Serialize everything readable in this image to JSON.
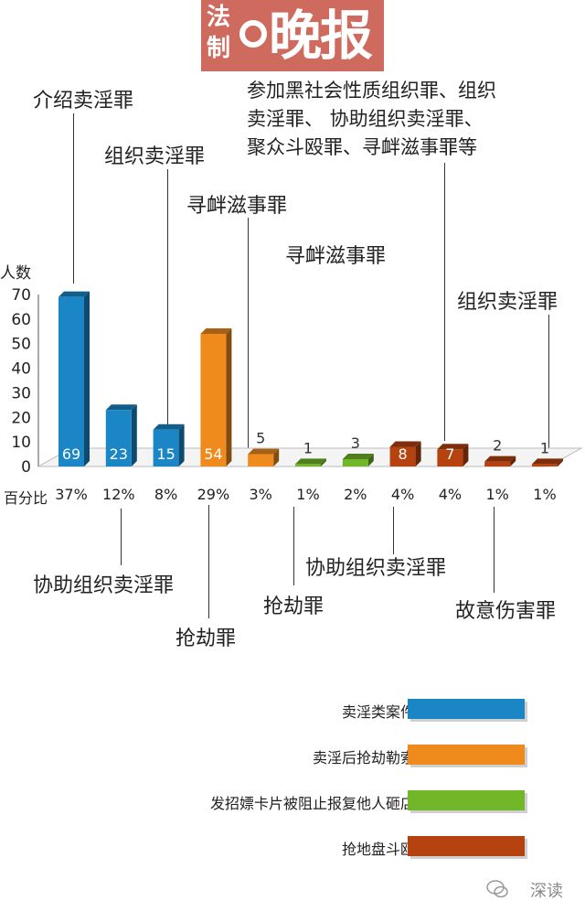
{
  "masthead": {
    "logo_small_top": "法",
    "logo_small_bottom": "制",
    "logo_big": "晚报"
  },
  "chart_data": {
    "type": "bar",
    "ylabel": "人数",
    "ylim": [
      0,
      70
    ],
    "yticks": [
      "0",
      "10",
      "20",
      "30",
      "40",
      "50",
      "60",
      "70"
    ],
    "pct_title": "百分比",
    "bars": [
      {
        "value": 69,
        "pct": "37%",
        "group": "卖淫类案件",
        "color": "#1a86c6",
        "annotation": "介绍卖淫罪"
      },
      {
        "value": 23,
        "pct": "12%",
        "group": "卖淫类案件",
        "color": "#1a86c6",
        "annotation": "协助组织卖淫罪"
      },
      {
        "value": 15,
        "pct": "8%",
        "group": "卖淫类案件",
        "color": "#1a86c6",
        "annotation": "组织卖淫罪"
      },
      {
        "value": 54,
        "pct": "29%",
        "group": "卖淫后抢劫勒索",
        "color": "#ef8a1c",
        "annotation": "抢劫罪"
      },
      {
        "value": 5,
        "pct": "3%",
        "group": "卖淫后抢劫勒索",
        "color": "#ef8a1c",
        "annotation": "寻衅滋事罪"
      },
      {
        "value": 1,
        "pct": "1%",
        "group": "发招嫖卡片被阻止报复他人砸店",
        "color": "#72b62a",
        "annotation": "抢劫罪"
      },
      {
        "value": 3,
        "pct": "2%",
        "group": "发招嫖卡片被阻止报复他人砸店",
        "color": "#72b62a",
        "annotation": "寻衅滋事罪"
      },
      {
        "value": 8,
        "pct": "4%",
        "group": "抢地盘斗殴",
        "color": "#b5420f",
        "annotation": "协助组织卖淫罪"
      },
      {
        "value": 7,
        "pct": "4%",
        "group": "抢地盘斗殴",
        "color": "#b5420f",
        "annotation": "参加黑社会性质组织罪、组织卖淫罪、 协助组织卖淫罪、聚众斗殴罪、寻衅滋事罪等"
      },
      {
        "value": 2,
        "pct": "1%",
        "group": "抢地盘斗殴",
        "color": "#b5420f",
        "annotation": "故意伤害罪"
      },
      {
        "value": 1,
        "pct": "1%",
        "group": "抢地盘斗殴",
        "color": "#b5420f",
        "annotation": "组织卖淫罪"
      }
    ],
    "legend": [
      {
        "label": "卖淫类案件",
        "color": "#1a86c6"
      },
      {
        "label": "卖淫后抢劫勒索",
        "color": "#ef8a1c"
      },
      {
        "label": "发招嫖卡片被阻止报复他人砸店",
        "color": "#72b62a"
      },
      {
        "label": "抢地盘斗殴",
        "color": "#b5420f"
      }
    ]
  },
  "annotations": {
    "a1": "介绍卖淫罪",
    "a2": "协助组织卖淫罪",
    "a3": "组织卖淫罪",
    "a4": "抢劫罪",
    "a5": "寻衅滋事罪",
    "a6": "抢劫罪",
    "a7": "寻衅滋事罪",
    "a8": "协助组织卖淫罪",
    "a9_line1": "参加黑社会性质组织罪、组织",
    "a9_line2": "卖淫罪、   协助组织卖淫罪、",
    "a9_line3": "聚众斗殴罪、寻衅滋事罪等",
    "a10": "故意伤害罪",
    "a11": "组织卖淫罪"
  },
  "watermark": "深读"
}
